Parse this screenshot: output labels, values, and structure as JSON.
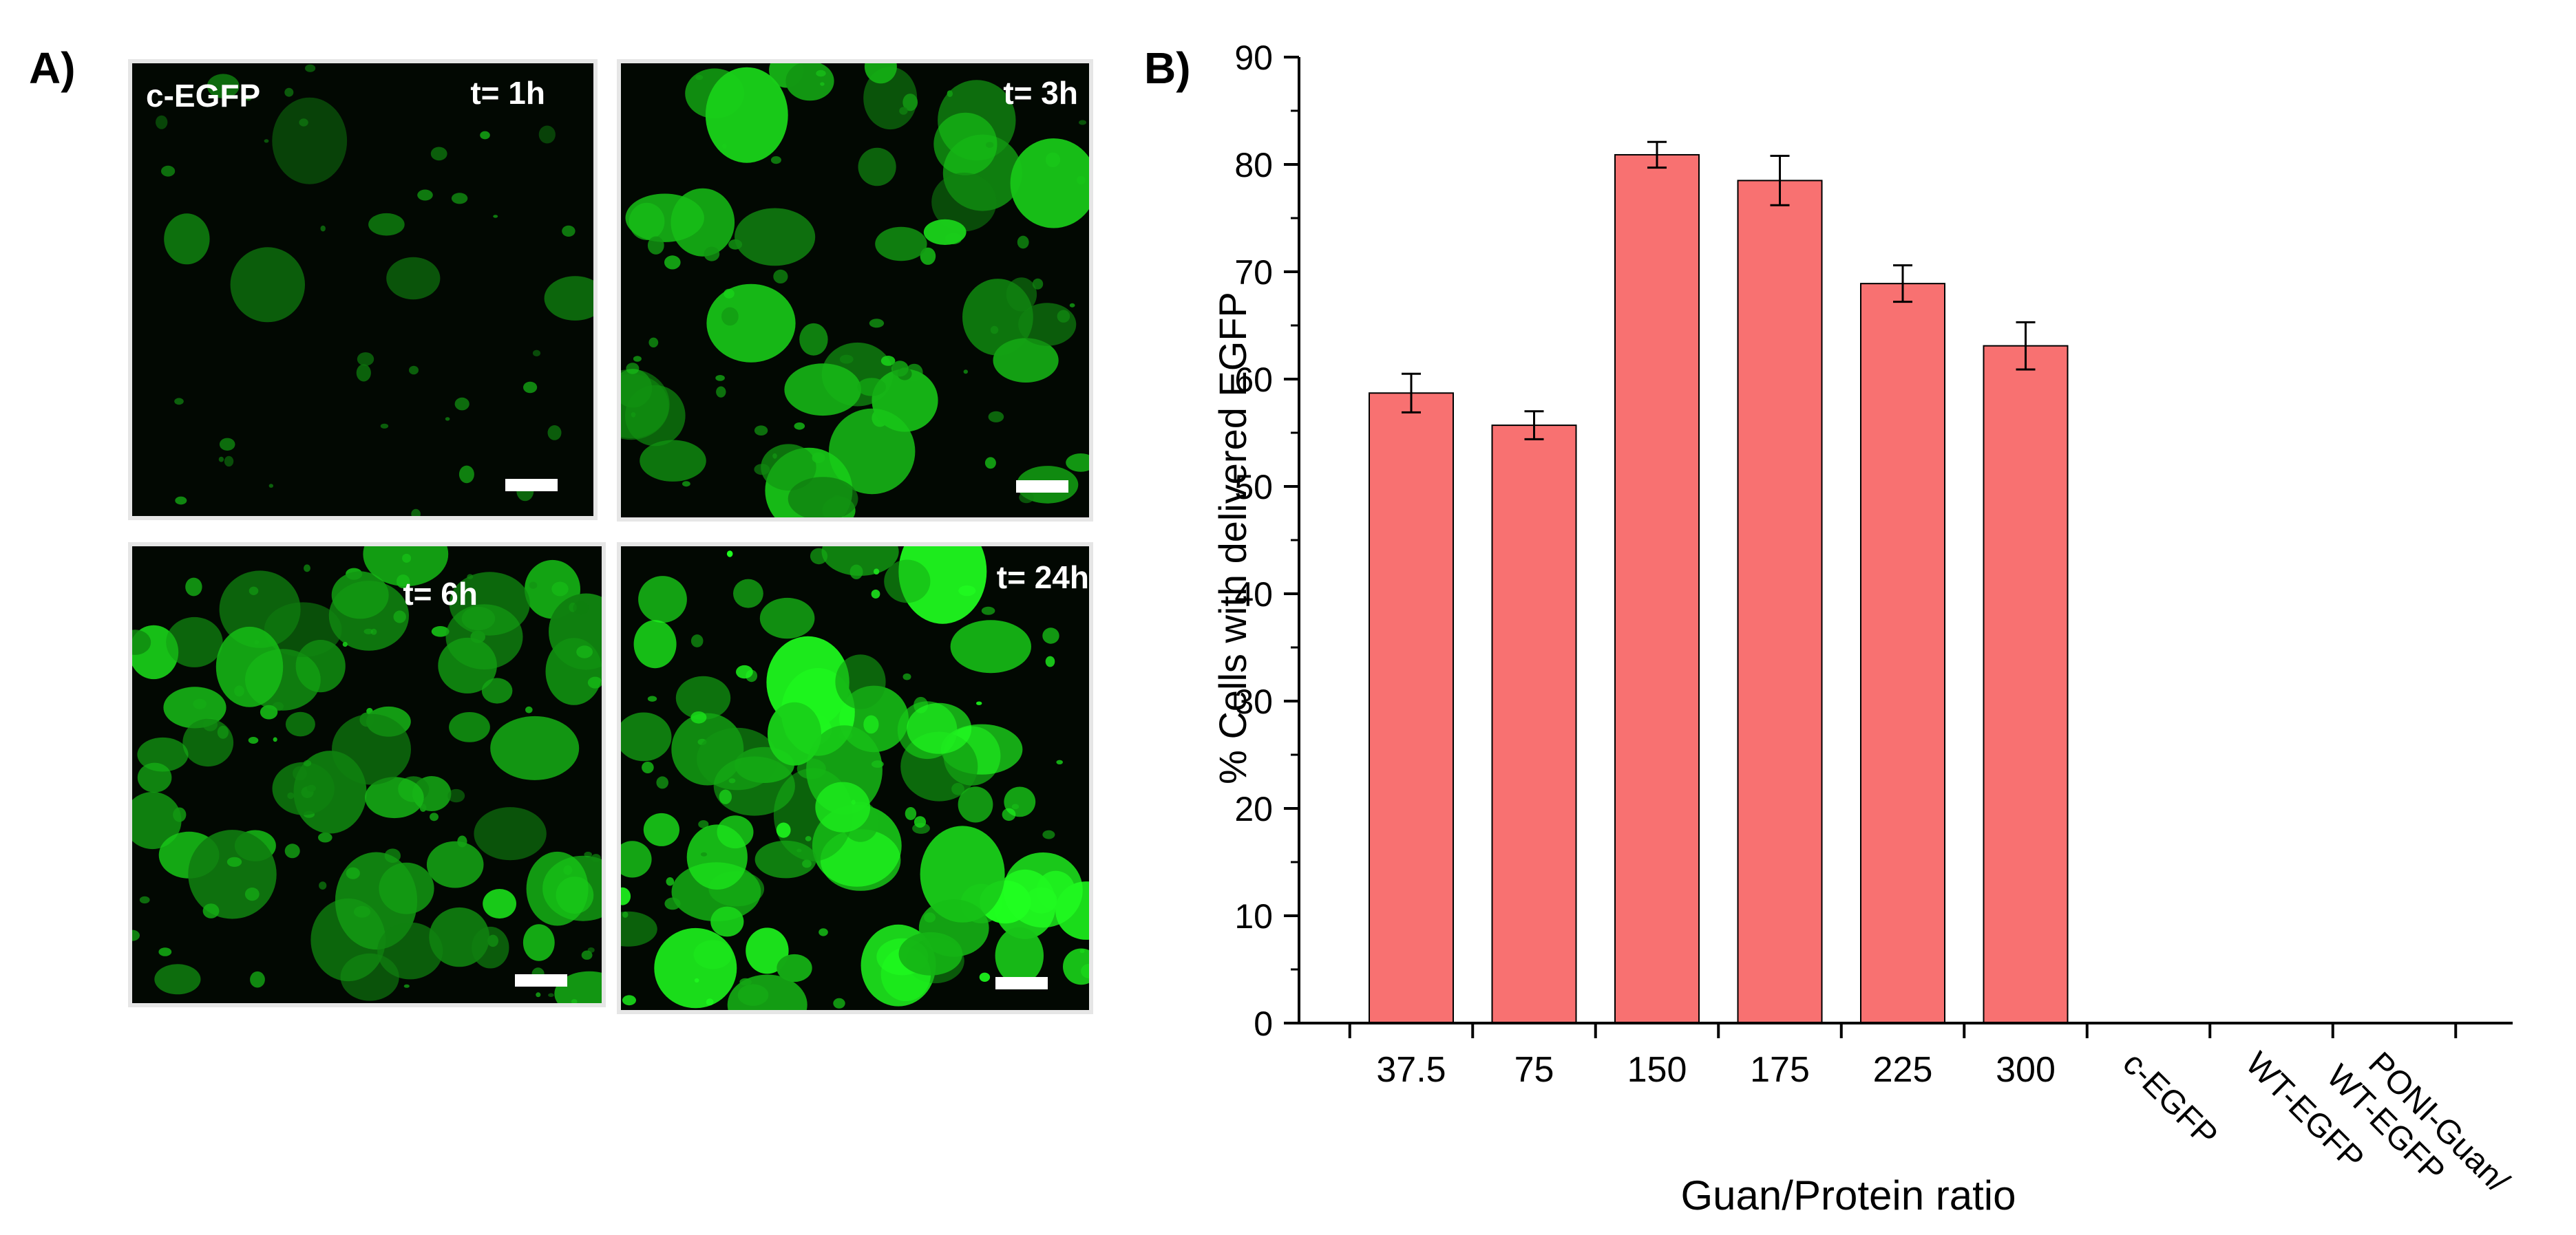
{
  "panel_a": {
    "letter": "A)",
    "images": [
      {
        "corner_label": "c-EGFP",
        "time_label": "t= 1h",
        "brightness": 0.25
      },
      {
        "corner_label": "",
        "time_label": "t= 3h",
        "brightness": 0.55
      },
      {
        "corner_label": "",
        "time_label": "t= 6h",
        "brightness": 0.5
      },
      {
        "corner_label": "",
        "time_label": "t= 24h",
        "brightness": 0.85
      }
    ]
  },
  "panel_b": {
    "letter": "B)"
  },
  "chart_data": {
    "type": "bar",
    "categories": [
      "37.5",
      "75",
      "150",
      "175",
      "225",
      "300",
      "c-EGFP",
      "WT-EGFP",
      "PONI-Guan/\nWT-EGFP"
    ],
    "values": [
      58.7,
      55.7,
      80.9,
      78.5,
      68.9,
      63.1,
      0,
      0,
      0
    ],
    "errors": [
      1.8,
      1.3,
      1.2,
      2.3,
      1.7,
      2.2,
      0,
      0,
      0
    ],
    "xlabel": "Guan/Protein ratio",
    "ylabel": "% Cells with delivered EGFP",
    "ylim": [
      0,
      90
    ],
    "yticks": [
      0,
      10,
      20,
      30,
      40,
      50,
      60,
      70,
      80,
      90
    ],
    "bar_color": "#f87171",
    "grid": false
  }
}
